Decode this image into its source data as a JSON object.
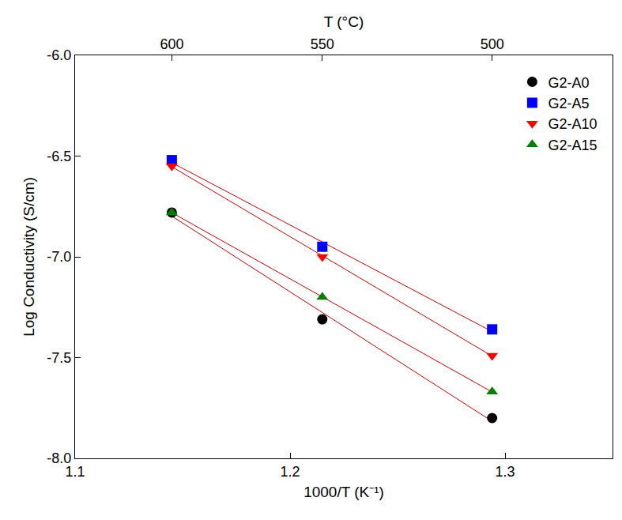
{
  "chart_data": {
    "type": "scatter",
    "xlabel": "1000/T (K⁻¹)",
    "ylabel": "Log Conductivity (S/cm)",
    "x2label": "T (°C)",
    "xlim": [
      1.1,
      1.35
    ],
    "xticks": [
      1.1,
      1.2,
      1.3
    ],
    "x2lim": [
      1.1,
      1.35
    ],
    "x2ticks": [
      {
        "value": 1.145,
        "label": "600"
      },
      {
        "value": 1.215,
        "label": "550"
      },
      {
        "value": 1.294,
        "label": "500"
      }
    ],
    "ylim": [
      -8,
      -6
    ],
    "yticks": [
      {
        "value": -8,
        "label": "-8.0"
      },
      {
        "value": -7.5,
        "label": "-7.5"
      },
      {
        "value": -7,
        "label": "-7.0"
      },
      {
        "value": -6.5,
        "label": "-6.5"
      },
      {
        "value": -6,
        "label": "-6.0"
      }
    ],
    "grid": false,
    "legend": "upper right",
    "x": [
      1.145,
      1.215,
      1.294
    ],
    "series": [
      {
        "name": "G2-A0",
        "color": "#000000",
        "marker": "circle",
        "line_style": "fit",
        "values": [
          -6.78,
          -7.31,
          -7.8
        ]
      },
      {
        "name": "G2-A5",
        "color": "#0000ff",
        "marker": "square",
        "line_style": "fit",
        "values": [
          -6.52,
          -6.95,
          -7.36
        ]
      },
      {
        "name": "G2-A10",
        "color": "#ff0000",
        "marker": "triangle-down",
        "line_style": "fit",
        "values": [
          -6.55,
          -7.0,
          -7.49
        ]
      },
      {
        "name": "G2-A15",
        "color": "#008000",
        "marker": "triangle-up",
        "line_style": "fit",
        "values": [
          -6.78,
          -7.2,
          -7.67
        ]
      }
    ]
  }
}
